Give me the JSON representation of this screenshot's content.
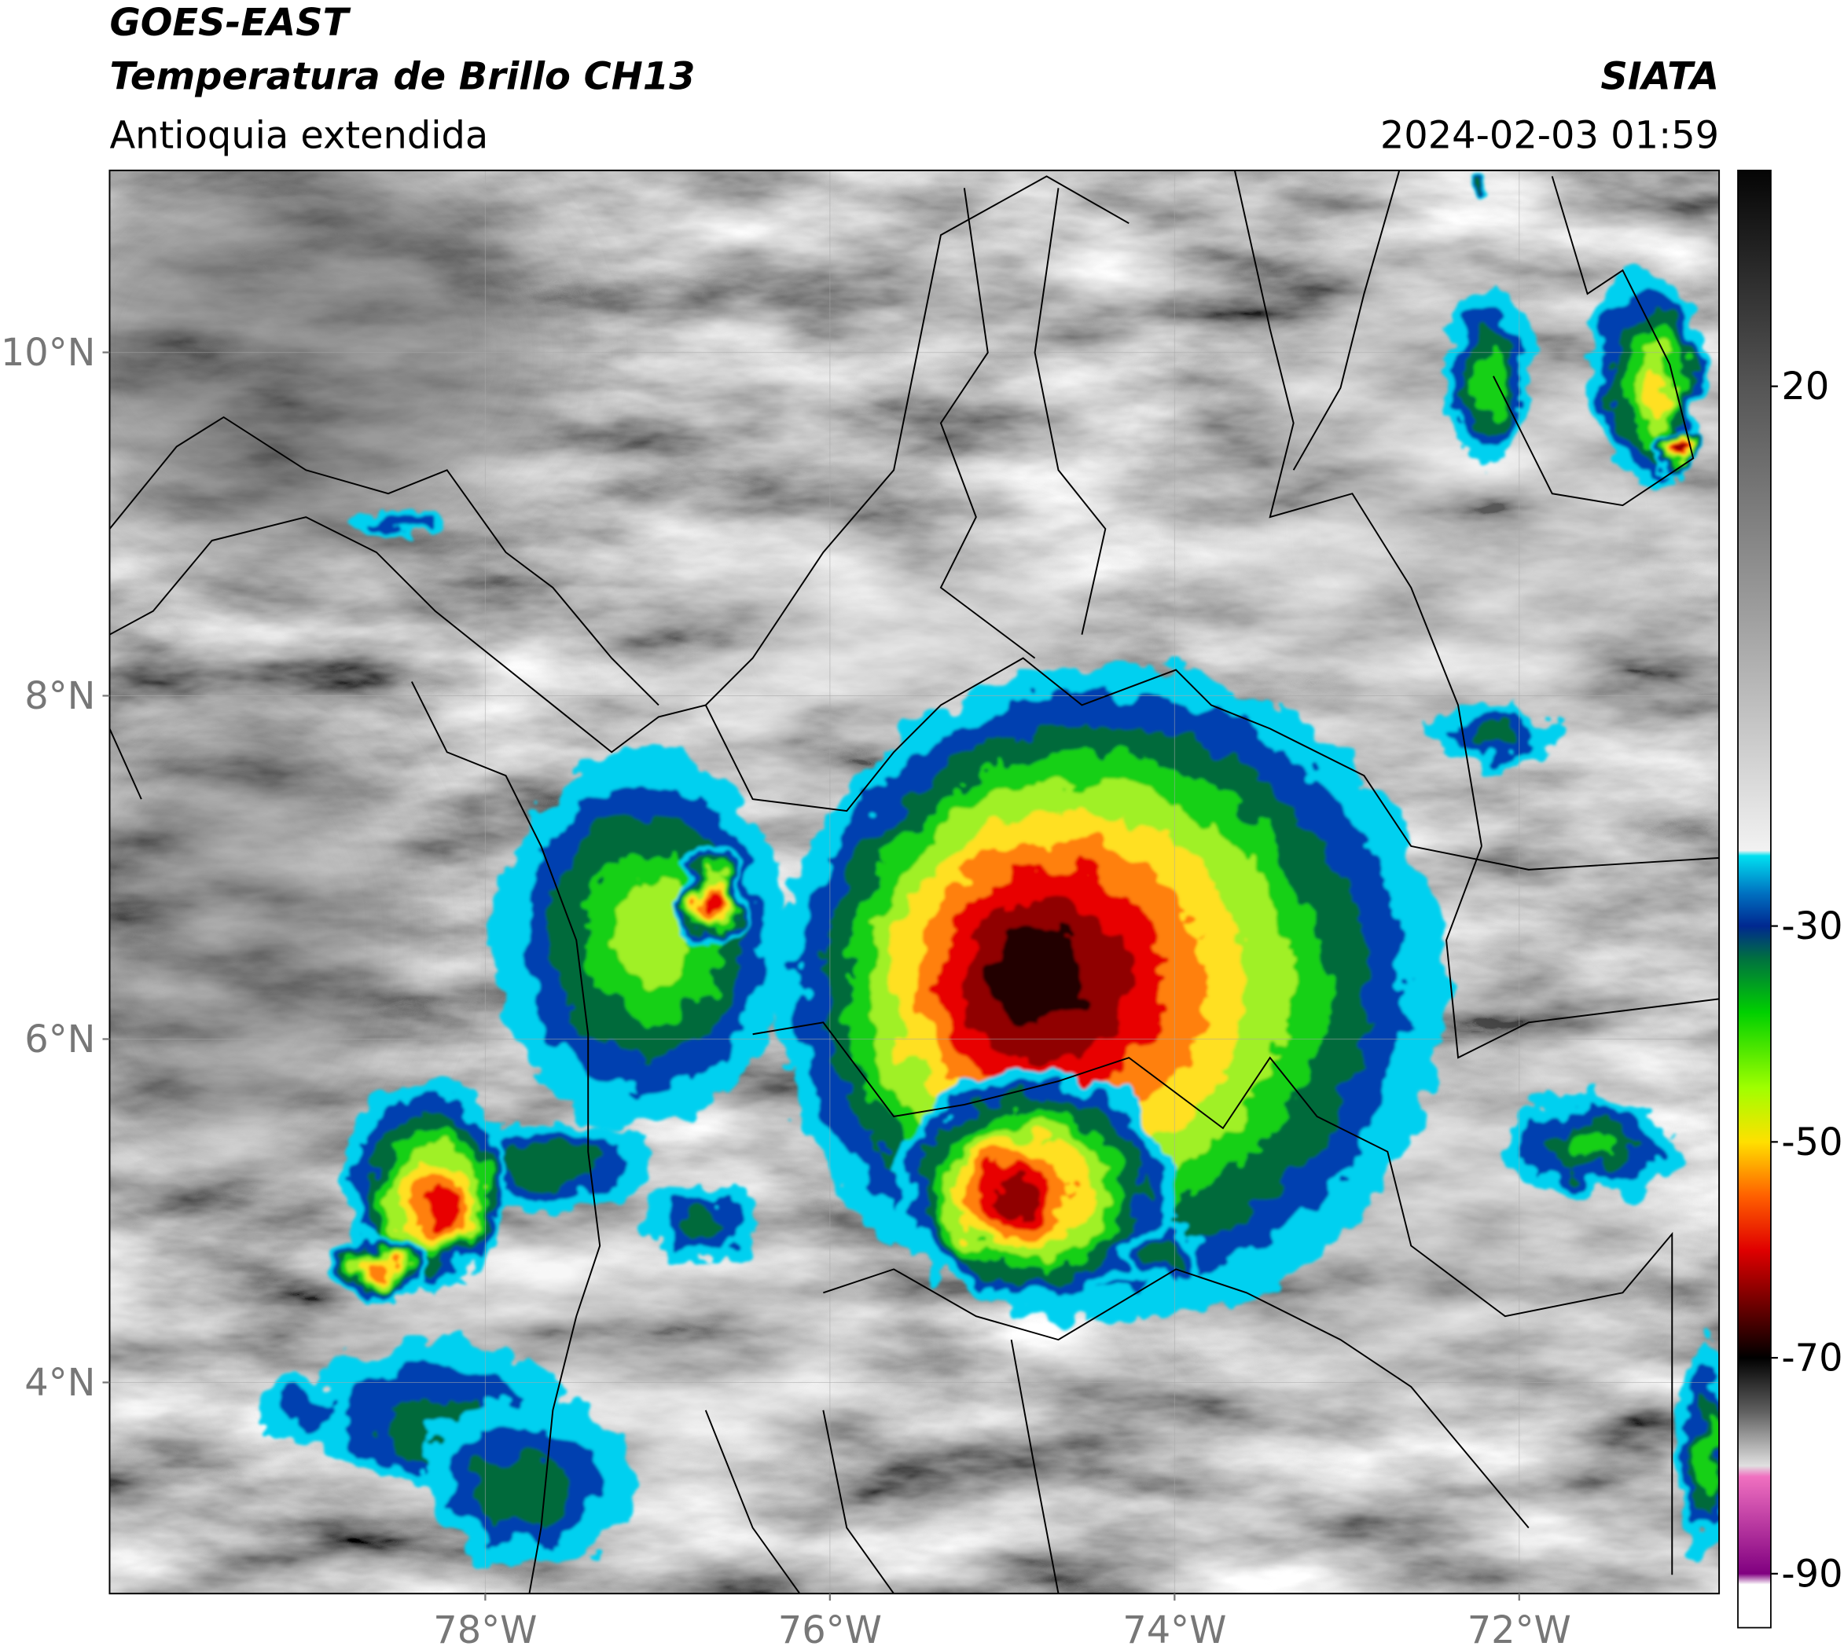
{
  "header": {
    "title": "GOES-EAST",
    "subtitle": "Temperatura de Brillo CH13",
    "region": "Antioquia extendida",
    "source": "SIATA",
    "timestamp": "2024-02-03 01:59"
  },
  "map": {
    "lon_range": [
      -80.18,
      -70.84
    ],
    "lat_range": [
      2.77,
      11.06
    ],
    "grid": true,
    "lon_ticks": [
      {
        "value": -78,
        "label": "78°W"
      },
      {
        "value": -76,
        "label": "76°W"
      },
      {
        "value": -74,
        "label": "74°W"
      },
      {
        "value": -72,
        "label": "72°W"
      }
    ],
    "lat_ticks": [
      {
        "value": 10,
        "label": "10°N"
      },
      {
        "value": 8,
        "label": "8°N"
      },
      {
        "value": 6,
        "label": "6°N"
      },
      {
        "value": 4,
        "label": "4°N"
      }
    ]
  },
  "colorbar": {
    "range": [
      -95,
      40
    ],
    "ticks": [
      20,
      -30,
      -50,
      -70,
      -90
    ],
    "colormap": [
      [
        40,
        "#050505"
      ],
      [
        20,
        "#555555"
      ],
      [
        0,
        "#9a9a9a"
      ],
      [
        -23,
        "#f2f2f2"
      ],
      [
        -23.5,
        "#00e0f0"
      ],
      [
        -27,
        "#0070c0"
      ],
      [
        -30,
        "#002890"
      ],
      [
        -33,
        "#007040"
      ],
      [
        -38,
        "#00d000"
      ],
      [
        -45,
        "#a0ff00"
      ],
      [
        -50,
        "#ffe000"
      ],
      [
        -55,
        "#ff6000"
      ],
      [
        -60,
        "#e00000"
      ],
      [
        -65,
        "#700000"
      ],
      [
        -70,
        "#000000"
      ],
      [
        -75,
        "#606060"
      ],
      [
        -80,
        "#e0e0e0"
      ],
      [
        -81,
        "#f070c0"
      ],
      [
        -90,
        "#800080"
      ],
      [
        -91,
        "#ffffff"
      ],
      [
        -95,
        "#ffffff"
      ]
    ]
  }
}
